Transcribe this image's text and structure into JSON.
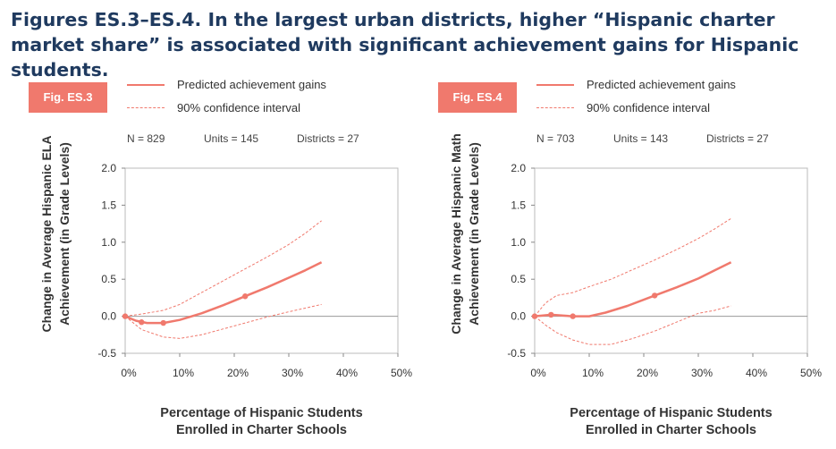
{
  "title": "Figures ES.3–ES.4. In the largest urban districts, higher “Hispanic charter market share” is associated with significant achievement gains for Hispanic students.",
  "colors": {
    "title": "#1f3a5f",
    "accent": "#f0796d",
    "axis": "#888888"
  },
  "panels": [
    {
      "badge": "Fig. ES.3",
      "legend": {
        "predicted": "Predicted achievement gains",
        "ci": "90% confidence interval"
      },
      "stats": {
        "n": "N = 829",
        "units": "Units = 145",
        "districts": "Districts = 27"
      }
    },
    {
      "badge": "Fig. ES.4",
      "legend": {
        "predicted": "Predicted achievement gains",
        "ci": "90% confidence interval"
      },
      "stats": {
        "n": "N = 703",
        "units": "Units = 143",
        "districts": "Districts = 27"
      }
    }
  ],
  "chart_data": [
    {
      "type": "line",
      "xlabel": "Percentage of Hispanic Students Enrolled in Charter Schools",
      "ylabel": "Change in Average Hispanic ELA Achievement (in Grade Levels)",
      "xlim": [
        0,
        50
      ],
      "ylim": [
        -0.5,
        2.0
      ],
      "x_ticks": [
        "0%",
        "10%",
        "20%",
        "30%",
        "40%",
        "50%"
      ],
      "y_ticks": [
        "2.0",
        "1.5",
        "1.0",
        "0.5",
        "0.0",
        "-0.5"
      ],
      "grid": false,
      "series": [
        {
          "name": "Predicted achievement gains",
          "style": "solid",
          "x": [
            0,
            2,
            4,
            7,
            10,
            14,
            18,
            22,
            26,
            30,
            33,
            36
          ],
          "y": [
            0.0,
            -0.06,
            -0.09,
            -0.09,
            -0.05,
            0.04,
            0.15,
            0.27,
            0.39,
            0.52,
            0.62,
            0.73
          ]
        },
        {
          "name": "90% confidence interval",
          "style": "dashed",
          "x": [
            0,
            3,
            7,
            10,
            14,
            18,
            22,
            26,
            30,
            33,
            36
          ],
          "y": [
            0.0,
            0.03,
            0.08,
            0.16,
            0.32,
            0.48,
            0.64,
            0.8,
            0.97,
            1.12,
            1.29
          ]
        },
        {
          "name": "90% confidence interval lower",
          "style": "dashed",
          "x": [
            0,
            3,
            7,
            10,
            14,
            18,
            22,
            26,
            30,
            33,
            36
          ],
          "y": [
            0.0,
            -0.18,
            -0.28,
            -0.3,
            -0.25,
            -0.17,
            -0.09,
            -0.01,
            0.06,
            0.11,
            0.16
          ]
        }
      ],
      "points": {
        "x": [
          0,
          3,
          7,
          22
        ],
        "y": [
          0.0,
          -0.08,
          -0.09,
          0.27
        ]
      }
    },
    {
      "type": "line",
      "xlabel": "Percentage of Hispanic Students Enrolled in Charter Schools",
      "ylabel": "Change in Average Hispanic Math Achievement (in Grade Levels)",
      "xlim": [
        0,
        50
      ],
      "ylim": [
        -0.5,
        2.0
      ],
      "x_ticks": [
        "0%",
        "10%",
        "20%",
        "30%",
        "40%",
        "50%"
      ],
      "y_ticks": [
        "2.0",
        "1.5",
        "1.0",
        "0.5",
        "0.0",
        "-0.5"
      ],
      "grid": false,
      "series": [
        {
          "name": "Predicted achievement gains",
          "style": "solid",
          "x": [
            0,
            3,
            7,
            10,
            13,
            17,
            22,
            26,
            30,
            33,
            36
          ],
          "y": [
            0.0,
            0.02,
            0.0,
            0.0,
            0.05,
            0.14,
            0.28,
            0.39,
            0.51,
            0.62,
            0.73
          ]
        },
        {
          "name": "90% confidence interval",
          "style": "dashed",
          "x": [
            0,
            2,
            4,
            7,
            10,
            14,
            18,
            22,
            26,
            30,
            33,
            36
          ],
          "y": [
            0.0,
            0.18,
            0.28,
            0.32,
            0.4,
            0.5,
            0.63,
            0.76,
            0.9,
            1.05,
            1.18,
            1.32
          ]
        },
        {
          "name": "90% confidence interval lower",
          "style": "dashed",
          "x": [
            0,
            2,
            4,
            7,
            10,
            14,
            18,
            22,
            26,
            30,
            33,
            36
          ],
          "y": [
            0.0,
            -0.12,
            -0.22,
            -0.32,
            -0.38,
            -0.38,
            -0.3,
            -0.2,
            -0.08,
            0.04,
            0.08,
            0.14
          ]
        }
      ],
      "points": {
        "x": [
          0,
          3,
          7,
          22
        ],
        "y": [
          0.0,
          0.02,
          0.0,
          0.28
        ]
      }
    }
  ]
}
